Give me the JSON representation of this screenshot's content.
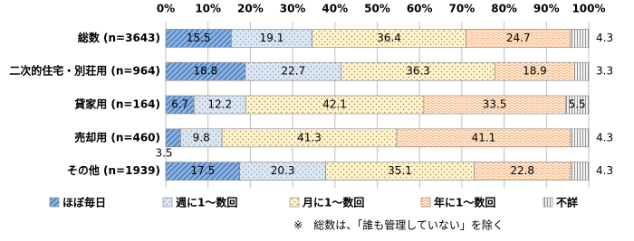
{
  "chart_data": {
    "type": "stacked-bar-horizontal",
    "categories": [
      "総数 (n=3643)",
      "二次的住宅・別荘用 (n=964)",
      "貸家用 (n=164)",
      "売却用 (n=460)",
      "その他 (n=1939)"
    ],
    "series": [
      {
        "name": "ほぼ毎日",
        "color": "#8db4e2",
        "values": [
          15.5,
          18.8,
          6.7,
          3.5,
          17.5
        ]
      },
      {
        "name": "週に1～数回",
        "color": "#dce6f1",
        "values": [
          19.1,
          22.7,
          12.2,
          9.8,
          20.3
        ]
      },
      {
        "name": "月に1～数回",
        "color": "#fff2cc",
        "values": [
          36.4,
          36.3,
          42.1,
          41.3,
          35.1
        ]
      },
      {
        "name": "年に1～数回",
        "color": "#fac090",
        "values": [
          24.7,
          18.9,
          33.5,
          41.1,
          22.8
        ]
      },
      {
        "name": "不詳",
        "color": "#f2f2f2",
        "values": [
          4.3,
          3.3,
          5.5,
          4.3,
          4.3
        ]
      }
    ],
    "xlim": [
      0,
      100
    ],
    "xticks": [
      {
        "value": 0,
        "label": "0%"
      },
      {
        "value": 10,
        "label": "10%"
      },
      {
        "value": 20,
        "label": "20%"
      },
      {
        "value": 30,
        "label": "30%"
      },
      {
        "value": 40,
        "label": "40%"
      },
      {
        "value": 50,
        "label": "50%"
      },
      {
        "value": 60,
        "label": "60%"
      },
      {
        "value": 70,
        "label": "70%"
      },
      {
        "value": 80,
        "label": "80%"
      },
      {
        "value": 90,
        "label": "90%"
      },
      {
        "value": 100,
        "label": "100%"
      }
    ],
    "grid": true,
    "note": "※　総数は、「誰も管理していない」を除く"
  }
}
